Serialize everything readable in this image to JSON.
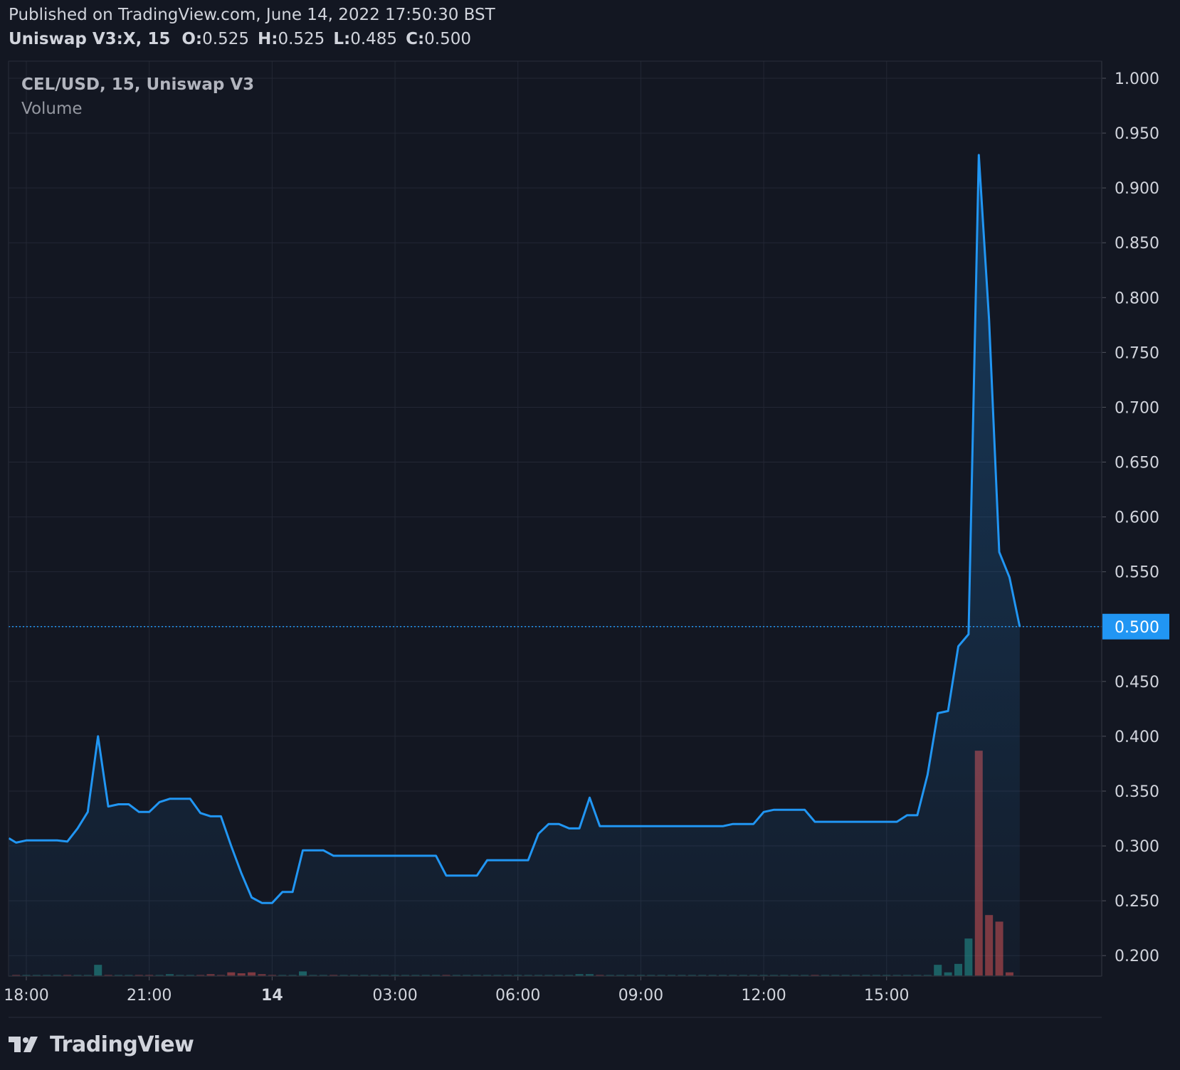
{
  "header": {
    "published": "Published on TradingView.com, June 14, 2022 17:50:30 BST",
    "symbol_interval": "Uniswap V3:X, 15",
    "ohlc": [
      {
        "label": "O:",
        "value": "0.525"
      },
      {
        "label": "H:",
        "value": "0.525"
      },
      {
        "label": "L:",
        "value": "0.485"
      },
      {
        "label": "C:",
        "value": "0.500"
      }
    ]
  },
  "legend": {
    "symbol": "CEL/USD, 15, Uniswap V3",
    "volume": "Volume"
  },
  "brand": {
    "text": "TradingView"
  },
  "colors": {
    "background": "#131722",
    "grid": "#232734",
    "line": "#2196f3",
    "volume_up": "#26a69a",
    "volume_down": "#ef5350",
    "price_label_bg": "#2196f3",
    "axis_text": "#d1d4dc"
  },
  "chart_data": {
    "type": "line",
    "title": "CEL/USD, 15, Uniswap V3",
    "ylim": [
      0.185,
      1.0
    ],
    "y_ticks": [
      "1.000",
      "0.950",
      "0.900",
      "0.850",
      "0.800",
      "0.750",
      "0.700",
      "0.650",
      "0.600",
      "0.550",
      "0.500",
      "0.450",
      "0.400",
      "0.350",
      "0.300",
      "0.250",
      "0.200"
    ],
    "x_ticks": [
      {
        "label": "18:00",
        "x": 0
      },
      {
        "label": "21:00",
        "x": 12
      },
      {
        "label": "14",
        "x": 24
      },
      {
        "label": "03:00",
        "x": 36
      },
      {
        "label": "06:00",
        "x": 48
      },
      {
        "label": "09:00",
        "x": 60
      },
      {
        "label": "12:00",
        "x": 72
      },
      {
        "label": "15:00",
        "x": 84
      }
    ],
    "grid": true,
    "last_price": "0.500",
    "series": [
      {
        "values": [
          [
            -1.7,
            0.307
          ],
          [
            -1,
            0.303
          ],
          [
            0,
            0.305
          ],
          [
            3,
            0.305
          ],
          [
            4,
            0.304
          ],
          [
            5,
            0.316
          ],
          [
            6,
            0.331
          ],
          [
            7,
            0.4
          ],
          [
            8,
            0.336
          ],
          [
            9,
            0.338
          ],
          [
            10,
            0.338
          ],
          [
            11,
            0.331
          ],
          [
            12,
            0.331
          ],
          [
            13,
            0.34
          ],
          [
            14,
            0.343
          ],
          [
            16,
            0.343
          ],
          [
            17,
            0.33
          ],
          [
            18,
            0.327
          ],
          [
            19,
            0.327
          ],
          [
            20,
            0.3
          ],
          [
            21,
            0.275
          ],
          [
            22,
            0.253
          ],
          [
            23,
            0.248
          ],
          [
            24,
            0.248
          ],
          [
            25,
            0.258
          ],
          [
            26,
            0.258
          ],
          [
            27,
            0.296
          ],
          [
            29,
            0.296
          ],
          [
            30,
            0.291
          ],
          [
            40,
            0.291
          ],
          [
            41,
            0.273
          ],
          [
            44,
            0.273
          ],
          [
            45,
            0.287
          ],
          [
            49,
            0.287
          ],
          [
            50,
            0.311
          ],
          [
            51,
            0.32
          ],
          [
            52,
            0.32
          ],
          [
            53,
            0.316
          ],
          [
            54,
            0.316
          ],
          [
            55,
            0.344
          ],
          [
            56,
            0.318
          ],
          [
            68,
            0.318
          ],
          [
            69,
            0.32
          ],
          [
            71,
            0.32
          ],
          [
            72,
            0.331
          ],
          [
            73,
            0.333
          ],
          [
            76,
            0.333
          ],
          [
            77,
            0.322
          ],
          [
            85,
            0.322
          ],
          [
            86,
            0.328
          ],
          [
            87,
            0.328
          ],
          [
            88,
            0.365
          ],
          [
            89,
            0.421
          ],
          [
            90,
            0.423
          ],
          [
            91,
            0.482
          ],
          [
            92,
            0.493
          ],
          [
            93,
            0.93
          ],
          [
            94,
            0.78
          ],
          [
            95,
            0.568
          ],
          [
            96,
            0.545
          ],
          [
            97,
            0.5
          ]
        ]
      }
    ],
    "volume": [
      {
        "x": -1,
        "v": 1,
        "dir": "down"
      },
      {
        "x": 0,
        "v": 1,
        "dir": "up"
      },
      {
        "x": 1,
        "v": 1,
        "dir": "up"
      },
      {
        "x": 2,
        "v": 1,
        "dir": "up"
      },
      {
        "x": 3,
        "v": 1,
        "dir": "up"
      },
      {
        "x": 4,
        "v": 1,
        "dir": "down"
      },
      {
        "x": 5,
        "v": 1,
        "dir": "up"
      },
      {
        "x": 6,
        "v": 1,
        "dir": "up"
      },
      {
        "x": 7,
        "v": 12,
        "dir": "up"
      },
      {
        "x": 8,
        "v": 1,
        "dir": "down"
      },
      {
        "x": 9,
        "v": 1,
        "dir": "up"
      },
      {
        "x": 10,
        "v": 1,
        "dir": "up"
      },
      {
        "x": 11,
        "v": 1,
        "dir": "down"
      },
      {
        "x": 12,
        "v": 1,
        "dir": "down"
      },
      {
        "x": 13,
        "v": 1,
        "dir": "up"
      },
      {
        "x": 14,
        "v": 2,
        "dir": "up"
      },
      {
        "x": 15,
        "v": 1,
        "dir": "up"
      },
      {
        "x": 16,
        "v": 1,
        "dir": "up"
      },
      {
        "x": 17,
        "v": 1,
        "dir": "down"
      },
      {
        "x": 18,
        "v": 2,
        "dir": "down"
      },
      {
        "x": 19,
        "v": 1,
        "dir": "down"
      },
      {
        "x": 20,
        "v": 4,
        "dir": "down"
      },
      {
        "x": 21,
        "v": 3,
        "dir": "down"
      },
      {
        "x": 22,
        "v": 4,
        "dir": "down"
      },
      {
        "x": 23,
        "v": 2,
        "dir": "down"
      },
      {
        "x": 24,
        "v": 1,
        "dir": "down"
      },
      {
        "x": 25,
        "v": 1,
        "dir": "up"
      },
      {
        "x": 26,
        "v": 1,
        "dir": "up"
      },
      {
        "x": 27,
        "v": 5,
        "dir": "up"
      },
      {
        "x": 28,
        "v": 1,
        "dir": "up"
      },
      {
        "x": 29,
        "v": 1,
        "dir": "up"
      },
      {
        "x": 30,
        "v": 1,
        "dir": "down"
      },
      {
        "x": 31,
        "v": 1,
        "dir": "up"
      },
      {
        "x": 32,
        "v": 1,
        "dir": "up"
      },
      {
        "x": 33,
        "v": 1,
        "dir": "up"
      },
      {
        "x": 34,
        "v": 1,
        "dir": "up"
      },
      {
        "x": 35,
        "v": 1,
        "dir": "up"
      },
      {
        "x": 36,
        "v": 1,
        "dir": "up"
      },
      {
        "x": 37,
        "v": 1,
        "dir": "up"
      },
      {
        "x": 38,
        "v": 1,
        "dir": "up"
      },
      {
        "x": 39,
        "v": 1,
        "dir": "up"
      },
      {
        "x": 40,
        "v": 1,
        "dir": "up"
      },
      {
        "x": 41,
        "v": 1,
        "dir": "down"
      },
      {
        "x": 42,
        "v": 1,
        "dir": "up"
      },
      {
        "x": 43,
        "v": 1,
        "dir": "up"
      },
      {
        "x": 44,
        "v": 1,
        "dir": "up"
      },
      {
        "x": 45,
        "v": 1,
        "dir": "up"
      },
      {
        "x": 46,
        "v": 1,
        "dir": "up"
      },
      {
        "x": 47,
        "v": 1,
        "dir": "up"
      },
      {
        "x": 48,
        "v": 1,
        "dir": "up"
      },
      {
        "x": 49,
        "v": 1,
        "dir": "up"
      },
      {
        "x": 50,
        "v": 1,
        "dir": "up"
      },
      {
        "x": 51,
        "v": 1,
        "dir": "up"
      },
      {
        "x": 52,
        "v": 1,
        "dir": "up"
      },
      {
        "x": 53,
        "v": 1,
        "dir": "up"
      },
      {
        "x": 54,
        "v": 2,
        "dir": "up"
      },
      {
        "x": 55,
        "v": 2,
        "dir": "up"
      },
      {
        "x": 56,
        "v": 1,
        "dir": "down"
      },
      {
        "x": 57,
        "v": 1,
        "dir": "up"
      },
      {
        "x": 58,
        "v": 1,
        "dir": "up"
      },
      {
        "x": 59,
        "v": 1,
        "dir": "up"
      },
      {
        "x": 60,
        "v": 1,
        "dir": "up"
      },
      {
        "x": 61,
        "v": 1,
        "dir": "up"
      },
      {
        "x": 62,
        "v": 1,
        "dir": "up"
      },
      {
        "x": 63,
        "v": 1,
        "dir": "up"
      },
      {
        "x": 64,
        "v": 1,
        "dir": "up"
      },
      {
        "x": 65,
        "v": 1,
        "dir": "up"
      },
      {
        "x": 66,
        "v": 1,
        "dir": "up"
      },
      {
        "x": 67,
        "v": 1,
        "dir": "up"
      },
      {
        "x": 68,
        "v": 1,
        "dir": "up"
      },
      {
        "x": 69,
        "v": 1,
        "dir": "up"
      },
      {
        "x": 70,
        "v": 1,
        "dir": "up"
      },
      {
        "x": 71,
        "v": 1,
        "dir": "up"
      },
      {
        "x": 72,
        "v": 1,
        "dir": "up"
      },
      {
        "x": 73,
        "v": 1,
        "dir": "up"
      },
      {
        "x": 74,
        "v": 1,
        "dir": "up"
      },
      {
        "x": 75,
        "v": 1,
        "dir": "up"
      },
      {
        "x": 76,
        "v": 1,
        "dir": "up"
      },
      {
        "x": 77,
        "v": 1,
        "dir": "down"
      },
      {
        "x": 78,
        "v": 1,
        "dir": "up"
      },
      {
        "x": 79,
        "v": 1,
        "dir": "up"
      },
      {
        "x": 80,
        "v": 1,
        "dir": "up"
      },
      {
        "x": 81,
        "v": 1,
        "dir": "up"
      },
      {
        "x": 82,
        "v": 1,
        "dir": "up"
      },
      {
        "x": 83,
        "v": 1,
        "dir": "up"
      },
      {
        "x": 84,
        "v": 1,
        "dir": "up"
      },
      {
        "x": 85,
        "v": 1,
        "dir": "up"
      },
      {
        "x": 86,
        "v": 1,
        "dir": "up"
      },
      {
        "x": 87,
        "v": 1,
        "dir": "up"
      },
      {
        "x": 88,
        "v": 1,
        "dir": "up"
      },
      {
        "x": 89,
        "v": 12,
        "dir": "up"
      },
      {
        "x": 90,
        "v": 4,
        "dir": "up"
      },
      {
        "x": 91,
        "v": 13,
        "dir": "up"
      },
      {
        "x": 92,
        "v": 40,
        "dir": "up"
      },
      {
        "x": 93,
        "v": 240,
        "dir": "down"
      },
      {
        "x": 94,
        "v": 65,
        "dir": "down"
      },
      {
        "x": 95,
        "v": 58,
        "dir": "down"
      },
      {
        "x": 96,
        "v": 4,
        "dir": "down"
      }
    ]
  }
}
